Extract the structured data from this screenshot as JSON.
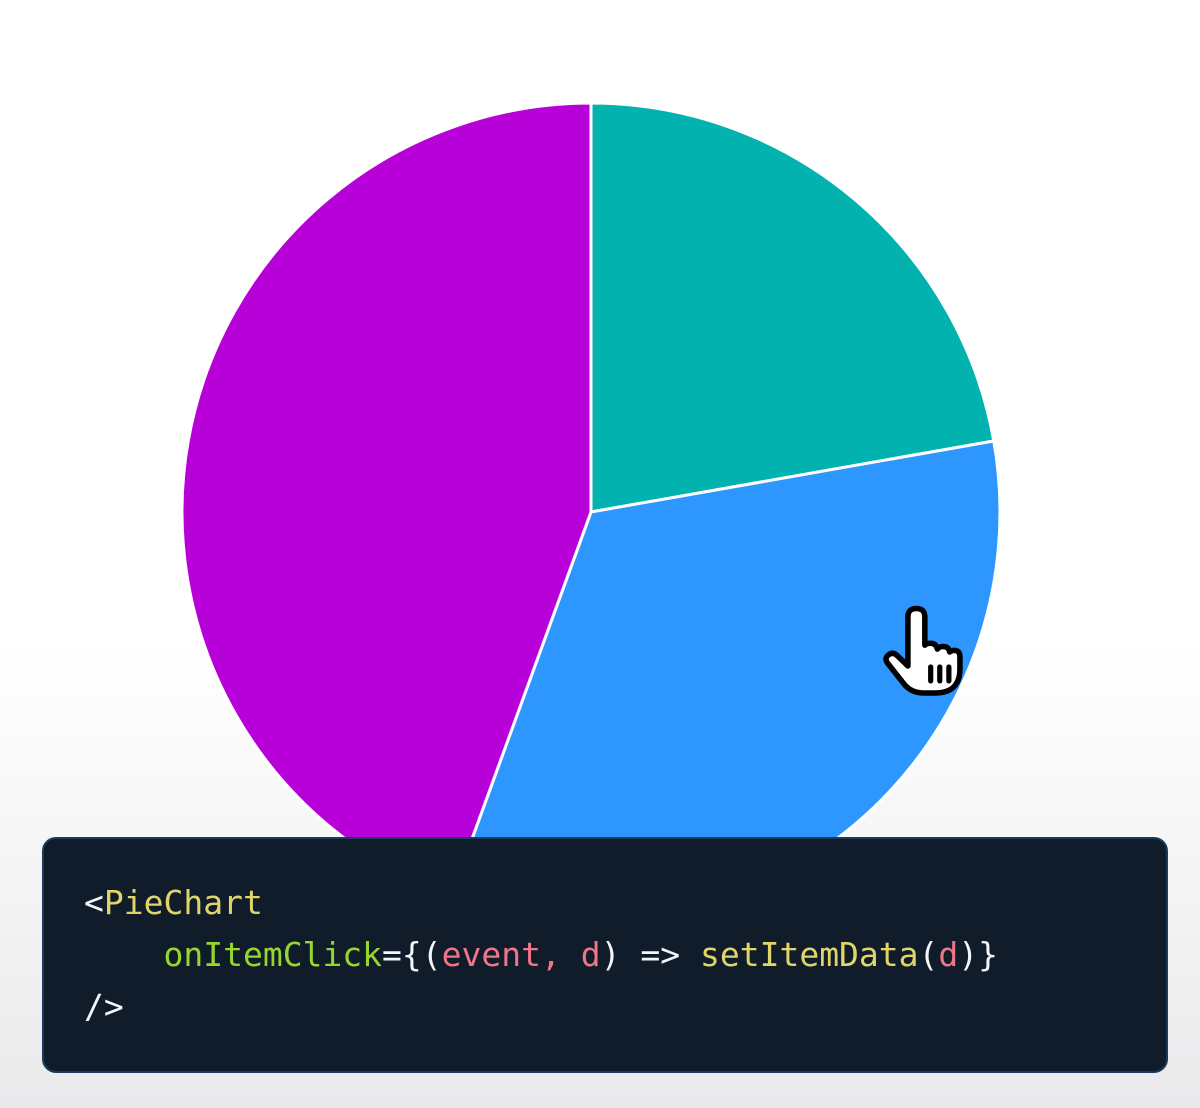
{
  "page": {
    "background_top": "#FFFFFF",
    "background_bottom": "#E9E9EB"
  },
  "chart_data": {
    "type": "pie",
    "title": "",
    "values": [
      10,
      15,
      20
    ],
    "percentages": [
      22.2,
      33.3,
      44.4
    ],
    "angles_deg": [
      80,
      120,
      160
    ],
    "colors": [
      "#02B2AF",
      "#2E96FF",
      "#B800D8"
    ],
    "slice_names": [
      "teal-slice",
      "blue-slice",
      "magenta-slice"
    ],
    "start_angle_deg": 0,
    "direction": "clockwise",
    "slice_stroke_color": "#FFFFFF",
    "slice_stroke_width": 3,
    "radius": 409,
    "legend": "none",
    "labels_visible": false
  },
  "cursor": {
    "type": "pointer-hand",
    "fill": "#FFFFFF",
    "outline": "#000000",
    "over_slice": "blue-slice"
  },
  "code_block": {
    "background": "#101C2A",
    "border_color": "#1B3A5C",
    "text_colors": {
      "tag": "#E0D569",
      "attr": "#95D72F",
      "param": "#EF7588",
      "plain": "#F2F5F9"
    },
    "lines": [
      [
        {
          "text": "<",
          "color": "plain"
        },
        {
          "text": "PieChart",
          "color": "tag"
        }
      ],
      [
        {
          "text": "    ",
          "color": "plain"
        },
        {
          "text": "onItemClick",
          "color": "attr"
        },
        {
          "text": "=",
          "color": "plain"
        },
        {
          "text": "{",
          "color": "plain"
        },
        {
          "text": "(",
          "color": "plain"
        },
        {
          "text": "event,",
          "color": "param"
        },
        {
          "text": " ",
          "color": "plain"
        },
        {
          "text": "d",
          "color": "param"
        },
        {
          "text": ")",
          "color": "plain"
        },
        {
          "text": " => ",
          "color": "plain"
        },
        {
          "text": "setItemData",
          "color": "tag"
        },
        {
          "text": "(",
          "color": "plain"
        },
        {
          "text": "d",
          "color": "param"
        },
        {
          "text": ")",
          "color": "plain"
        },
        {
          "text": "}",
          "color": "plain"
        }
      ],
      [
        {
          "text": "/>",
          "color": "plain"
        }
      ]
    ]
  }
}
